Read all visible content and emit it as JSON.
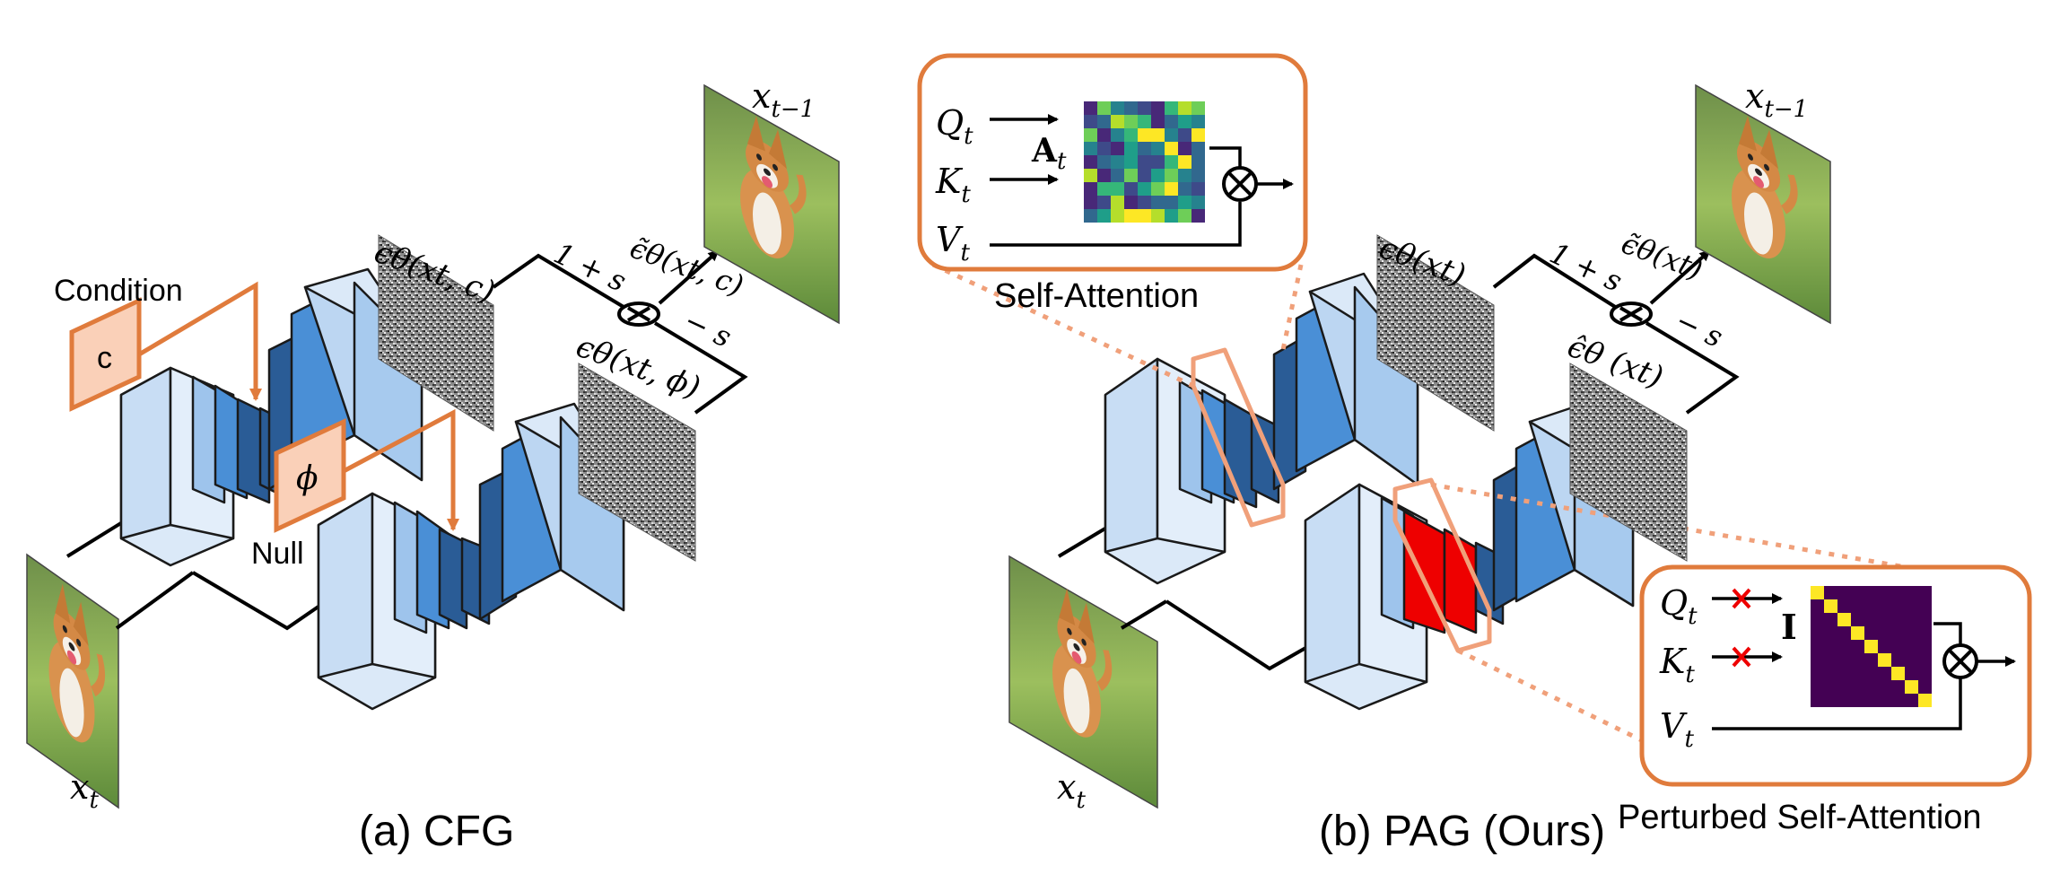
{
  "panel_a": {
    "caption": "(a) CFG",
    "condition_label": "Condition",
    "condition_symbol": "c",
    "null_label": "Null",
    "null_symbol": "ϕ",
    "input_label": "x",
    "input_sub": "t",
    "output_label": "x",
    "output_sub": "t−1",
    "noise_cond_label": "ϵθ(xt, c)",
    "noise_null_label": "ϵθ(xt, ϕ)",
    "guided_label": "ϵ̃θ(xt, c)",
    "weight_pos": "1 + s",
    "weight_neg": "− s"
  },
  "panel_b": {
    "caption": "(b) PAG (Ours)",
    "input_label": "x",
    "input_sub": "t",
    "output_label": "x",
    "output_sub": "t−1",
    "noise_label": "ϵθ(xt)",
    "noise_perturbed_label": "ϵ̂θ (xt)",
    "guided_label": "ϵ̃θ(xt)",
    "weight_pos": "1 + s",
    "weight_neg": "− s",
    "self_attention": {
      "title": "Self-Attention",
      "q": "Q",
      "k": "K",
      "v": "V",
      "sub": "t",
      "matrix_label": "A",
      "matrix_sub": "t"
    },
    "perturbed_attention": {
      "title": "Perturbed Self-Attention",
      "q": "Q",
      "k": "K",
      "v": "V",
      "sub": "t",
      "matrix_label": "I"
    }
  },
  "colors": {
    "orange": "#E07B3C",
    "orange_fill": "#FAD0B8",
    "light_blue": "#CFE2F7",
    "mid_blue": "#4A8FD6",
    "dark_blue": "#2A5C96",
    "red": "#EE0000",
    "identity_bg": "#440154",
    "identity_diag": "#FDE725"
  }
}
